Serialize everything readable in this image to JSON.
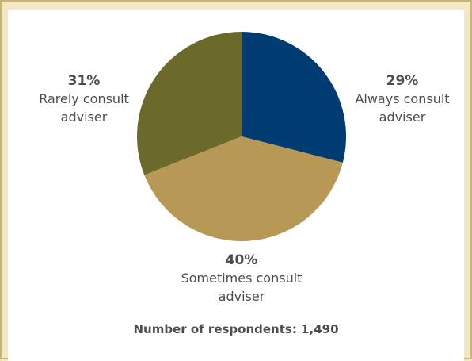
{
  "chart_data": {
    "type": "pie",
    "slices": [
      {
        "label_pct": "29%",
        "label_lines": [
          "Always consult",
          "adviser"
        ],
        "value": 29,
        "color": "#003b71"
      },
      {
        "label_pct": "40%",
        "label_lines": [
          "Sometimes consult",
          "adviser"
        ],
        "value": 40,
        "color": "#b79854"
      },
      {
        "label_pct": "31%",
        "label_lines": [
          "Rarely consult",
          "adviser"
        ],
        "value": 31,
        "color": "#6b6a2a"
      }
    ]
  },
  "footnote": "Number of respondents: 1,490"
}
